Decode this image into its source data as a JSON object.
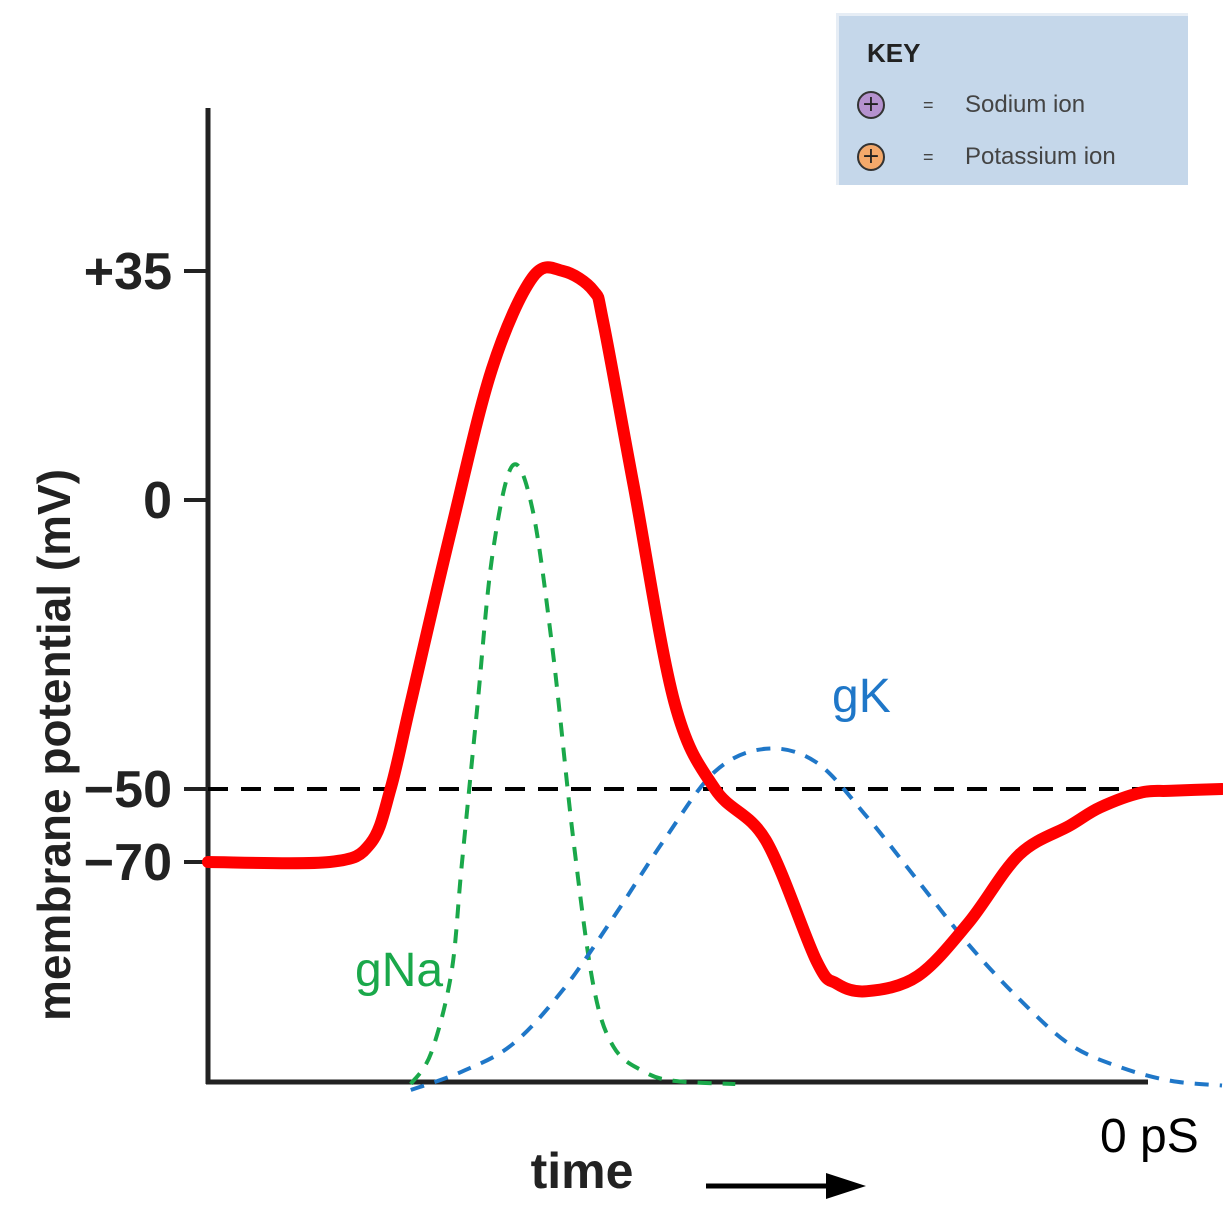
{
  "chart_data": {
    "type": "line",
    "xlabel": "time",
    "ylabel": "membrane potential (mV)",
    "y_ticks": [
      "+35",
      "0",
      "−50",
      "−70"
    ],
    "threshold": -50,
    "bottom_label": "0 pS",
    "key": {
      "title": "KEY",
      "items": [
        {
          "label": "Sodium ion",
          "color": "#b592cf"
        },
        {
          "label": "Potassium ion",
          "color": "#f4a96b"
        }
      ]
    },
    "series": [
      {
        "label": "",
        "color": "#ff0000",
        "style": "solid",
        "x": [
          0,
          12,
          16,
          18,
          20,
          24,
          28,
          32,
          35,
          38,
          39,
          42,
          46,
          50,
          55,
          60,
          62,
          65,
          70,
          75,
          80,
          85,
          88,
          92,
          95,
          100
        ],
        "y": [
          -70,
          -70,
          -65,
          -50,
          -35,
          -5,
          20,
          34,
          35,
          32,
          27,
          2,
          -35,
          -50,
          -64,
          -83,
          -86,
          -87,
          -85,
          -78,
          -68,
          -60,
          -55,
          -51,
          -50.5,
          -50
        ]
      },
      {
        "label": "gNa",
        "color": "#1aa84a",
        "style": "dashed",
        "x": [
          20,
          22,
          24,
          25,
          26.5,
          28,
          30,
          32,
          34,
          36,
          38,
          40,
          43,
          46,
          52
        ],
        "y": [
          0,
          0.05,
          0.18,
          0.35,
          0.6,
          0.85,
          1.0,
          0.93,
          0.7,
          0.4,
          0.16,
          0.06,
          0.02,
          0.005,
          0
        ]
      },
      {
        "label": "gK",
        "color": "#1f77c8",
        "style": "dashed",
        "x": [
          20,
          25,
          30,
          35,
          40,
          45,
          50,
          55,
          60,
          65,
          70,
          75,
          80,
          85,
          90,
          95,
          100
        ],
        "y": [
          0,
          0.04,
          0.1,
          0.22,
          0.38,
          0.55,
          0.7,
          0.75,
          0.72,
          0.6,
          0.46,
          0.32,
          0.2,
          0.1,
          0.05,
          0.02,
          0.01
        ]
      }
    ]
  }
}
